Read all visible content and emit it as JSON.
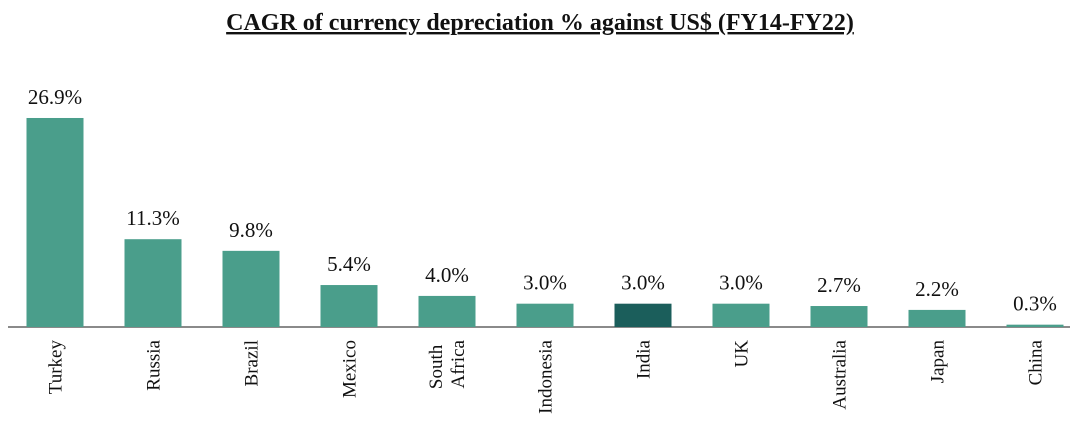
{
  "chart_data": {
    "type": "bar",
    "title": "CAGR of currency depreciation % against US$ (FY14-FY22)",
    "categories": [
      "Turkey",
      "Russia",
      "Brazil",
      "Mexico",
      "South Africa",
      "Indonesia",
      "India",
      "UK",
      "Australia",
      "Japan",
      "China"
    ],
    "values": [
      26.9,
      11.3,
      9.8,
      5.4,
      4.0,
      3.0,
      3.0,
      3.0,
      2.7,
      2.2,
      0.3
    ],
    "value_labels": [
      "26.9%",
      "11.3%",
      "9.8%",
      "5.4%",
      "4.0%",
      "3.0%",
      "3.0%",
      "3.0%",
      "2.7%",
      "2.2%",
      "0.3%"
    ],
    "colors": [
      "#4a9e8b",
      "#4a9e8b",
      "#4a9e8b",
      "#4a9e8b",
      "#4a9e8b",
      "#4a9e8b",
      "#1b5e5b",
      "#4a9e8b",
      "#4a9e8b",
      "#4a9e8b",
      "#4a9e8b"
    ]
  }
}
